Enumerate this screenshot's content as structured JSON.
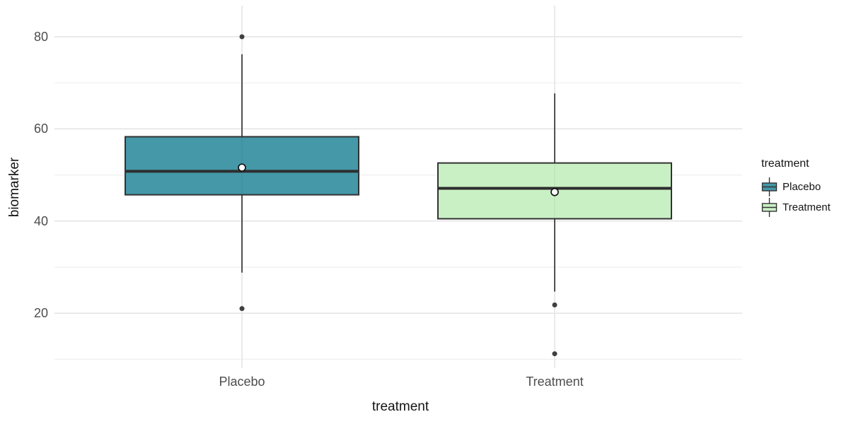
{
  "figure": {
    "background": "#ffffff"
  },
  "chart_data": {
    "type": "boxplot",
    "title": "",
    "xlabel": "treatment",
    "ylabel": "biomarker",
    "categories": [
      "Placebo",
      "Treatment"
    ],
    "y_ticks": [
      20,
      40,
      60,
      80
    ],
    "y_minor_ticks": [
      10,
      30,
      50,
      70
    ],
    "ylim": [
      8.1,
      86.7
    ],
    "grid": true,
    "legend": {
      "title": "treatment",
      "position": "right",
      "entries": [
        {
          "label": "Placebo",
          "fill": "#4498A8"
        },
        {
          "label": "Treatment",
          "fill": "#C9F0C4"
        }
      ]
    },
    "series": [
      {
        "name": "Placebo",
        "fill": "#4498A8",
        "stats": {
          "whisker_low": 28.8,
          "q1": 45.7,
          "median": 50.8,
          "q3": 58.3,
          "whisker_high": 76.2,
          "mean": 51.6,
          "outliers": [
            80,
            21
          ]
        }
      },
      {
        "name": "Treatment",
        "fill": "#C9F0C4",
        "stats": {
          "whisker_low": 24.7,
          "q1": 40.5,
          "median": 47.1,
          "q3": 52.6,
          "whisker_high": 67.7,
          "mean": 46.3,
          "outliers": [
            21.8,
            11.2
          ]
        }
      }
    ],
    "colors": {
      "box_border": "#333333",
      "median": "#2e2e2e",
      "whisker": "#333333",
      "outlier": "#3f3f3f",
      "mean_fill": "#ffffff",
      "mean_border": "#141414",
      "gridline_major": "#e3e3e3",
      "gridline_minor": "#efefef",
      "tick_text": "#4d4d4d",
      "title_text": "#141414"
    }
  }
}
